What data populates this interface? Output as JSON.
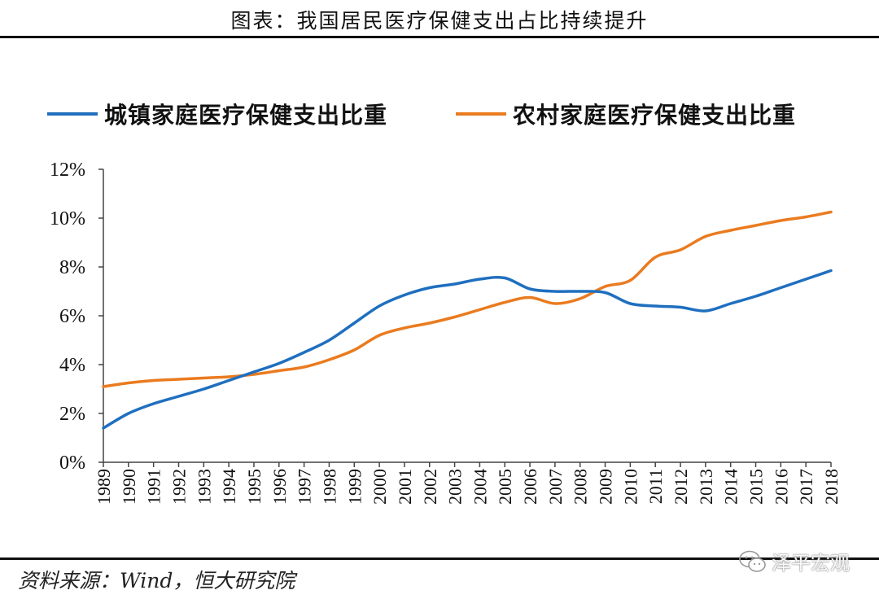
{
  "header": {
    "title": "图表：我国居民医疗保健支出占比持续提升"
  },
  "footer": {
    "source": "资料来源：Wind，恒大研究院",
    "watermark": "泽平宏观",
    "watermark_icon": "wechat-icon"
  },
  "colors": {
    "urban": "#1f6fbf",
    "rural": "#ea7b1f",
    "axis": "#444444"
  },
  "chart_data": {
    "type": "line",
    "title": "",
    "xlabel": "",
    "ylabel": "",
    "ylim": [
      0,
      12
    ],
    "grid": false,
    "legend_position": "top",
    "x": [
      "1989",
      "1990",
      "1991",
      "1992",
      "1993",
      "1994",
      "1995",
      "1996",
      "1997",
      "1998",
      "1999",
      "2000",
      "2001",
      "2002",
      "2003",
      "2004",
      "2005",
      "2006",
      "2007",
      "2008",
      "2009",
      "2010",
      "2011",
      "2012",
      "2013",
      "2014",
      "2015",
      "2016",
      "2017",
      "2018"
    ],
    "y_ticks": [
      "0%",
      "2%",
      "4%",
      "6%",
      "8%",
      "10%",
      "12%"
    ],
    "series": [
      {
        "name": "城镇家庭医疗保健支出比重",
        "values": [
          1.4,
          2.0,
          2.4,
          2.7,
          3.0,
          3.35,
          3.7,
          4.05,
          4.5,
          5.0,
          5.7,
          6.4,
          6.85,
          7.15,
          7.3,
          7.5,
          7.55,
          7.1,
          7.0,
          7.0,
          6.95,
          6.5,
          6.4,
          6.35,
          6.2,
          6.5,
          6.8,
          7.15,
          7.5,
          7.85
        ]
      },
      {
        "name": "农村家庭医疗保健支出比重",
        "values": [
          3.1,
          3.25,
          3.35,
          3.4,
          3.45,
          3.5,
          3.6,
          3.75,
          3.9,
          4.2,
          4.6,
          5.2,
          5.5,
          5.7,
          5.95,
          6.25,
          6.55,
          6.75,
          6.5,
          6.7,
          7.2,
          7.45,
          8.4,
          8.7,
          9.25,
          9.5,
          9.7,
          9.9,
          10.05,
          10.25
        ]
      }
    ]
  }
}
